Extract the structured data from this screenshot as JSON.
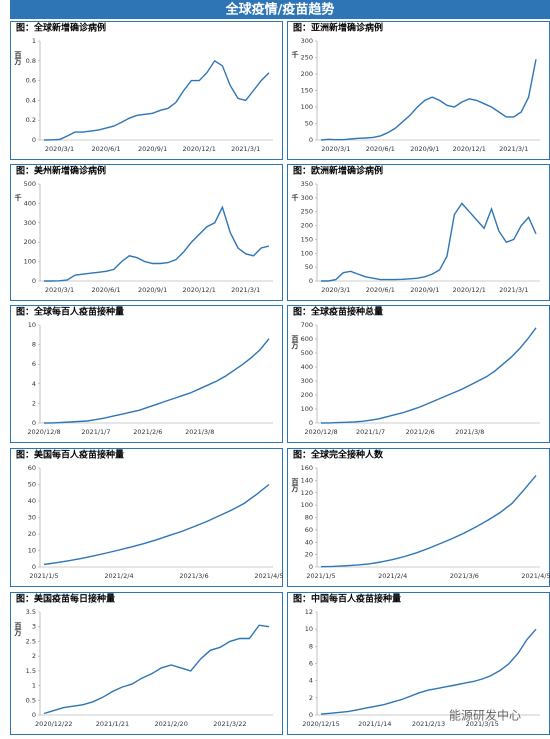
{
  "header": {
    "title": "全球疫情/疫苗趋势"
  },
  "watermark": "能源研发中心",
  "chart_data": [
    {
      "type": "line",
      "title": "图：全球新增确诊病例",
      "y_label": "百万",
      "color": "#2e75b6",
      "categories": [
        null,
        null,
        "2020/3/1",
        null,
        null,
        null,
        null,
        null,
        "2020/6/1",
        null,
        null,
        null,
        null,
        null,
        "2020/9/1",
        null,
        null,
        null,
        null,
        null,
        "2020/12/1",
        null,
        null,
        null,
        null,
        null,
        "2021/3/1",
        null,
        null,
        null
      ],
      "values": [
        0,
        0.002,
        0.005,
        0.04,
        0.08,
        0.08,
        0.09,
        0.1,
        0.12,
        0.14,
        0.18,
        0.22,
        0.25,
        0.26,
        0.27,
        0.3,
        0.32,
        0.38,
        0.5,
        0.6,
        0.6,
        0.68,
        0.8,
        0.75,
        0.55,
        0.42,
        0.4,
        0.5,
        0.6,
        0.68
      ],
      "ylim": [
        0,
        1
      ],
      "yticks": [
        0,
        0.2,
        0.4,
        0.6,
        0.8,
        1
      ]
    },
    {
      "type": "line",
      "title": "图：亚洲新增确诊病例",
      "y_label": "千",
      "color": "#2e75b6",
      "categories": [
        null,
        null,
        "2020/3/1",
        null,
        null,
        null,
        null,
        null,
        "2020/6/1",
        null,
        null,
        null,
        null,
        null,
        "2020/9/1",
        null,
        null,
        null,
        null,
        null,
        "2020/12/1",
        null,
        null,
        null,
        null,
        null,
        "2021/3/1",
        null,
        null,
        null
      ],
      "values": [
        0,
        2,
        1,
        1,
        3,
        5,
        6,
        8,
        12,
        22,
        35,
        55,
        75,
        100,
        120,
        130,
        120,
        105,
        100,
        115,
        125,
        120,
        110,
        100,
        85,
        70,
        70,
        85,
        130,
        245
      ],
      "ylim": [
        0,
        300
      ],
      "yticks": [
        0,
        50,
        100,
        150,
        200,
        250,
        300
      ]
    },
    {
      "type": "line",
      "title": "图：美州新增确诊病例",
      "y_label": "千",
      "color": "#2e75b6",
      "categories": [
        null,
        null,
        "2020/3/1",
        null,
        null,
        null,
        null,
        null,
        "2020/6/1",
        null,
        null,
        null,
        null,
        null,
        "2020/9/1",
        null,
        null,
        null,
        null,
        null,
        "2020/12/1",
        null,
        null,
        null,
        null,
        null,
        "2021/3/1",
        null,
        null,
        null
      ],
      "values": [
        0,
        0,
        1,
        5,
        30,
        35,
        40,
        45,
        50,
        60,
        100,
        130,
        120,
        100,
        90,
        90,
        95,
        110,
        150,
        200,
        240,
        280,
        300,
        380,
        250,
        170,
        140,
        130,
        170,
        180
      ],
      "ylim": [
        0,
        500
      ],
      "yticks": [
        0,
        100,
        200,
        300,
        400,
        500
      ]
    },
    {
      "type": "line",
      "title": "图：欧洲新增确诊病例",
      "y_label": "千",
      "color": "#2e75b6",
      "categories": [
        null,
        null,
        "2020/3/1",
        null,
        null,
        null,
        null,
        null,
        "2020/6/1",
        null,
        null,
        null,
        null,
        null,
        "2020/9/1",
        null,
        null,
        null,
        null,
        null,
        "2020/12/1",
        null,
        null,
        null,
        null,
        null,
        "2021/3/1",
        null,
        null,
        null
      ],
      "values": [
        0,
        0,
        5,
        30,
        35,
        25,
        15,
        10,
        5,
        5,
        5,
        6,
        8,
        10,
        15,
        25,
        40,
        90,
        240,
        280,
        250,
        220,
        190,
        260,
        180,
        140,
        150,
        200,
        230,
        170
      ],
      "ylim": [
        0,
        350
      ],
      "yticks": [
        0,
        50,
        100,
        150,
        200,
        250,
        300,
        350
      ]
    },
    {
      "type": "line",
      "title": "图：全球每百人疫苗接种量",
      "color": "#2e75b6",
      "categories": [
        "2020/12/8",
        null,
        null,
        null,
        null,
        null,
        "2021/1/7",
        null,
        null,
        null,
        null,
        null,
        "2021/2/6",
        null,
        null,
        null,
        null,
        null,
        "2021/3/8",
        null,
        null,
        null,
        null,
        null,
        null,
        null,
        null
      ],
      "values": [
        0,
        0.01,
        0.05,
        0.1,
        0.15,
        0.2,
        0.35,
        0.5,
        0.7,
        0.9,
        1.1,
        1.3,
        1.6,
        1.9,
        2.2,
        2.5,
        2.8,
        3.1,
        3.5,
        3.9,
        4.3,
        4.8,
        5.4,
        6,
        6.7,
        7.5,
        8.6
      ],
      "ylim": [
        0,
        10
      ],
      "yticks": [
        0,
        2,
        4,
        6,
        8,
        10
      ]
    },
    {
      "type": "line",
      "title": "图：全球疫苗接种总量",
      "y_label": "百万",
      "color": "#2e75b6",
      "categories": [
        "2020/12/8",
        null,
        null,
        null,
        null,
        null,
        "2021/1/7",
        null,
        null,
        null,
        null,
        null,
        "2021/2/6",
        null,
        null,
        null,
        null,
        null,
        "2021/3/8",
        null,
        null,
        null,
        null,
        null,
        null,
        null,
        null
      ],
      "values": [
        0,
        1,
        3,
        5,
        8,
        12,
        20,
        30,
        45,
        60,
        75,
        95,
        115,
        140,
        165,
        190,
        215,
        240,
        270,
        300,
        330,
        370,
        420,
        470,
        530,
        600,
        680
      ],
      "ylim": [
        0,
        700
      ],
      "yticks": [
        0,
        100,
        200,
        300,
        400,
        500,
        600,
        700
      ]
    },
    {
      "type": "line",
      "title": "图：美国每百人疫苗接种量",
      "color": "#2e75b6",
      "categories": [
        "2021/1/5",
        null,
        null,
        null,
        null,
        null,
        "2021/2/4",
        null,
        null,
        null,
        null,
        null,
        "2021/3/6",
        null,
        null,
        null,
        null,
        null,
        "2021/4/5"
      ],
      "values": [
        1.5,
        2.6,
        3.8,
        5.2,
        6.8,
        8.5,
        10.3,
        12.2,
        14.2,
        16.5,
        19,
        21.5,
        24.5,
        27.5,
        31,
        34.5,
        38.5,
        44,
        50
      ],
      "ylim": [
        0,
        60
      ],
      "yticks": [
        0,
        10,
        20,
        30,
        40,
        50,
        60
      ]
    },
    {
      "type": "line",
      "title": "图：全球完全接种人数",
      "y_label": "百万",
      "color": "#2e75b6",
      "categories": [
        "2021/1/5",
        null,
        null,
        null,
        null,
        null,
        "2021/2/4",
        null,
        null,
        null,
        null,
        null,
        "2021/3/6",
        null,
        null,
        null,
        null,
        null,
        "2021/4/5"
      ],
      "values": [
        0.5,
        1,
        2,
        3,
        5,
        8,
        12,
        17,
        23,
        30,
        38,
        46,
        55,
        65,
        76,
        88,
        103,
        125,
        148
      ],
      "ylim": [
        0,
        160
      ],
      "yticks": [
        0,
        20,
        40,
        60,
        80,
        100,
        120,
        140,
        160
      ]
    },
    {
      "type": "line",
      "title": "图：美国疫苗每日接种量",
      "y_label": "百万",
      "color": "#2e75b6",
      "categories": [
        null,
        "2020/12/22",
        null,
        null,
        null,
        null,
        null,
        "2021/1/21",
        null,
        null,
        null,
        null,
        null,
        "2021/2/20",
        null,
        null,
        null,
        null,
        null,
        "2021/3/22",
        null,
        null,
        null,
        null
      ],
      "values": [
        0.05,
        0.15,
        0.25,
        0.3,
        0.35,
        0.45,
        0.6,
        0.8,
        0.95,
        1.05,
        1.25,
        1.4,
        1.6,
        1.7,
        1.6,
        1.5,
        1.9,
        2.2,
        2.3,
        2.5,
        2.6,
        2.6,
        3.05,
        3
      ],
      "ylim": [
        0,
        3.5
      ],
      "yticks": [
        0,
        0.5,
        1,
        1.5,
        2,
        2.5,
        3,
        3.5
      ]
    },
    {
      "type": "line",
      "title": "图：中国每百人疫苗接种量",
      "color": "#2e75b6",
      "categories": [
        "2020/12/15",
        null,
        null,
        null,
        null,
        null,
        "2021/1/14",
        null,
        null,
        null,
        null,
        null,
        "2021/2/13",
        null,
        null,
        null,
        null,
        null,
        "2021/3/15",
        null,
        null,
        null,
        null,
        null,
        null
      ],
      "values": [
        0.1,
        0.2,
        0.3,
        0.4,
        0.6,
        0.8,
        1,
        1.2,
        1.5,
        1.8,
        2.2,
        2.6,
        2.9,
        3.1,
        3.3,
        3.5,
        3.7,
        3.9,
        4.2,
        4.6,
        5.2,
        6,
        7.2,
        8.8,
        10
      ],
      "ylim": [
        0,
        12
      ],
      "yticks": [
        0,
        2,
        4,
        6,
        8,
        10,
        12
      ]
    }
  ]
}
